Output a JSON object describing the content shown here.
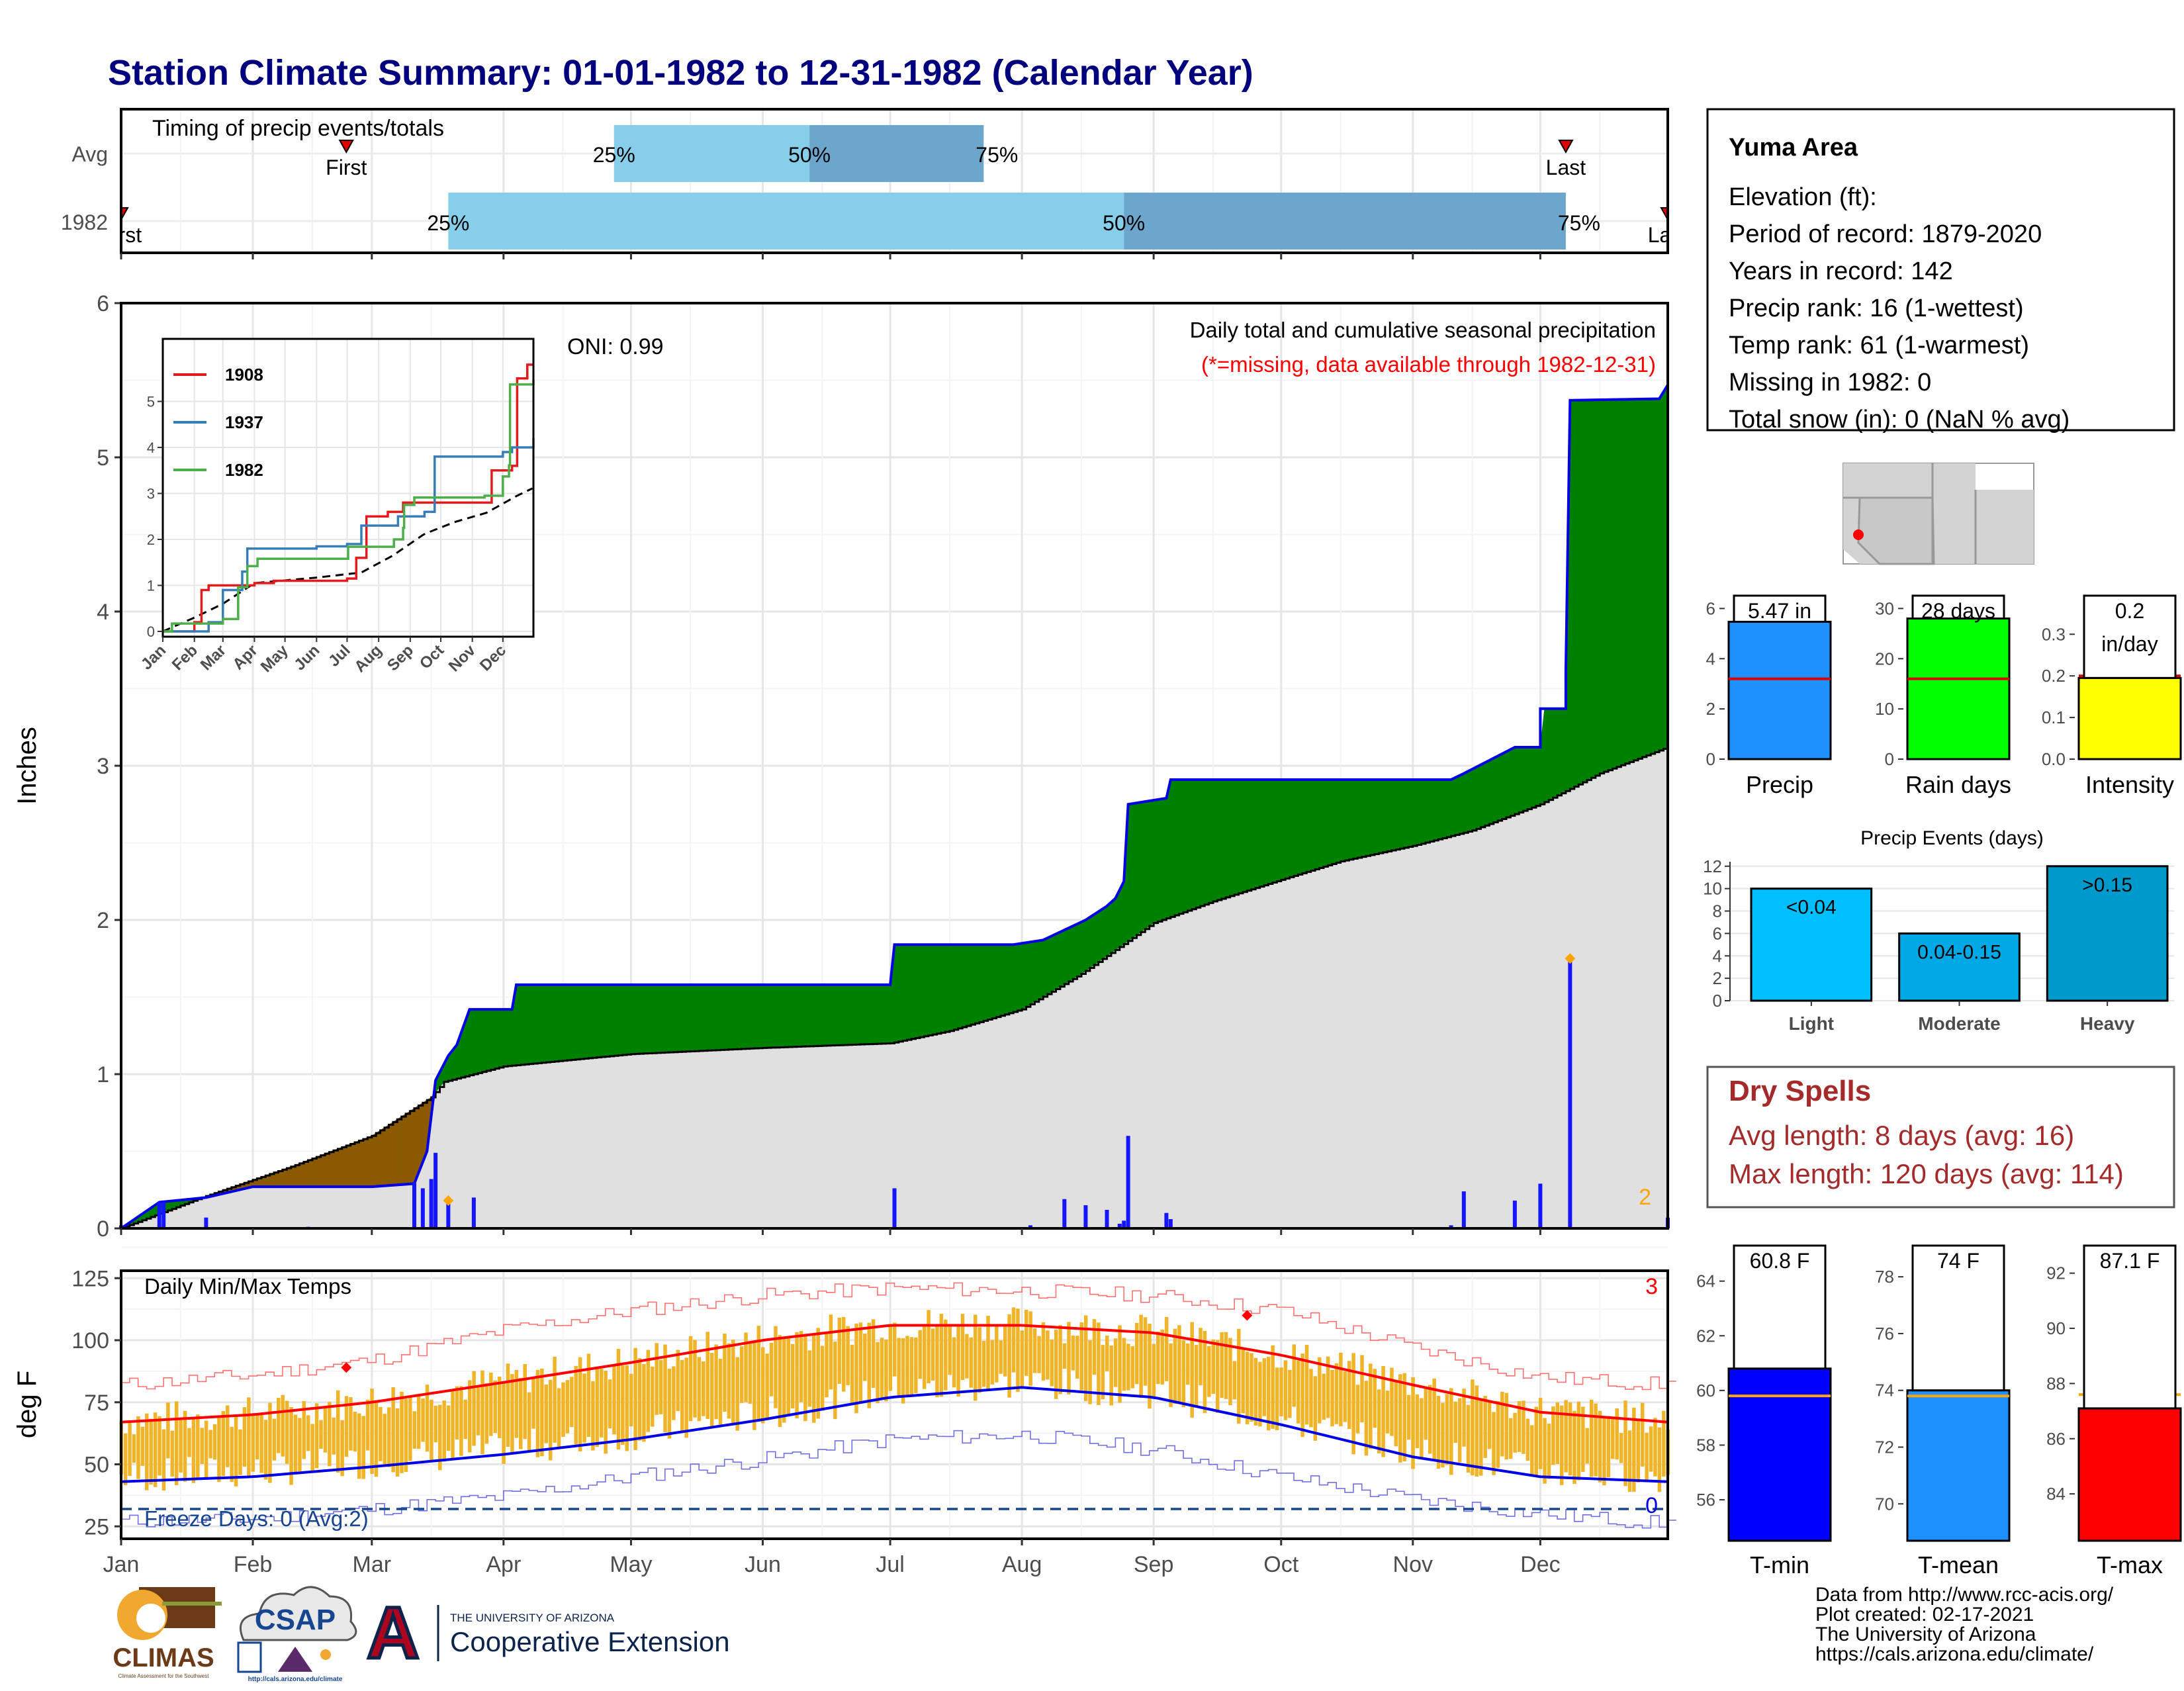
{
  "page": {
    "title": "Station Climate Summary: 01-01-1982 to 12-31-1982 (Calendar Year)",
    "months": [
      "Jan",
      "Feb",
      "Mar",
      "Apr",
      "May",
      "Jun",
      "Jul",
      "Aug",
      "Sep",
      "Oct",
      "Nov",
      "Dec"
    ],
    "footer_lines": [
      "Data from http://www.rcc-acis.org/",
      "Plot created: 02-17-2021",
      "The University of Arizona",
      "https://cals.arizona.edu/climate/"
    ],
    "logos": {
      "climas": "CLIMAS",
      "climas_tagline": "Climate Assessment for the Southwest",
      "csap": "CSAP",
      "csap_url": "http://cals.arizona.edu/climate",
      "ua_letter": "A",
      "ua_line1": "THE UNIVERSITY OF ARIZONA",
      "ua_line2": "Cooperative Extension"
    },
    "colors": {
      "title": "#00007f",
      "dark_red": "#a52a2a"
    }
  },
  "chart_data": [
    {
      "id": "timing",
      "type": "bar",
      "title": "Timing of precip events/totals",
      "rows": [
        {
          "label": "Avg",
          "first": "Feb 23",
          "p25": "Apr 27",
          "p50": "Jun 12",
          "p75": "Jul 23",
          "last": "Dec 7",
          "first_label": "First",
          "last_label": "Last"
        },
        {
          "label": "1982",
          "first": "Jan 1",
          "p25": "Mar 19",
          "p50": "Aug 25",
          "p75": "Dec 7",
          "last": "Dec 31",
          "first_label": "First",
          "last_label": "Last"
        }
      ],
      "pct_labels": [
        "25%",
        "50%",
        "75%"
      ],
      "colors": {
        "q1": "#87ceeb",
        "q2": "#6ca6cd",
        "marker": "#e00000"
      }
    },
    {
      "id": "precip",
      "type": "area",
      "ylabel": "Inches",
      "ylim": [
        0,
        6
      ],
      "yticks": [
        0,
        1,
        2,
        3,
        4,
        5,
        6
      ],
      "note1": "Daily total and cumulative seasonal precipitation",
      "note2": "(*=missing, data available through 1982-12-31)",
      "oni": "ONI: 0.99",
      "corner_count": "2",
      "cumulative_1982": [
        [
          "Jan 1",
          0
        ],
        [
          "Jan 10",
          0.17
        ],
        [
          "Jan 21",
          0.2
        ],
        [
          "Feb 1",
          0.27
        ],
        [
          "Mar 1",
          0.27
        ],
        [
          "Mar 11",
          0.29
        ],
        [
          "Mar 14",
          0.5
        ],
        [
          "Mar 16",
          0.96
        ],
        [
          "Mar 19",
          1.12
        ],
        [
          "Mar 21",
          1.19
        ],
        [
          "Mar 24",
          1.42
        ],
        [
          "Apr 3",
          1.42
        ],
        [
          "Apr 4",
          1.58
        ],
        [
          "Jul 1",
          1.58
        ],
        [
          "Jul 2",
          1.84
        ],
        [
          "Jul 30",
          1.84
        ],
        [
          "Aug 6",
          1.87
        ],
        [
          "Aug 16",
          2.0
        ],
        [
          "Aug 21",
          2.09
        ],
        [
          "Aug 23",
          2.14
        ],
        [
          "Aug 25",
          2.25
        ],
        [
          "Aug 26",
          2.75
        ],
        [
          "Sep 4",
          2.79
        ],
        [
          "Sep 5",
          2.91
        ],
        [
          "Nov 10",
          2.91
        ],
        [
          "Nov 13",
          2.95
        ],
        [
          "Nov 25",
          3.12
        ],
        [
          "Dec 1",
          3.12
        ],
        [
          "Dec 1",
          3.37
        ],
        [
          "Dec 7",
          3.37
        ],
        [
          "Dec 7",
          3.61
        ],
        [
          "Dec 8",
          5.37
        ],
        [
          "Dec 29",
          5.38
        ],
        [
          "Dec 31",
          5.47
        ]
      ],
      "average": [
        [
          "Jan 1",
          0
        ],
        [
          "Jan 20",
          0.2
        ],
        [
          "Feb 10",
          0.4
        ],
        [
          "Mar 1",
          0.6
        ],
        [
          "Mar 15",
          0.85
        ],
        [
          "Mar 18",
          0.95
        ],
        [
          "Apr 1",
          1.05
        ],
        [
          "May 1",
          1.13
        ],
        [
          "Jun 1",
          1.17
        ],
        [
          "Jul 1",
          1.2
        ],
        [
          "Jul 15",
          1.28
        ],
        [
          "Aug 1",
          1.42
        ],
        [
          "Aug 15",
          1.65
        ],
        [
          "Sep 1",
          1.98
        ],
        [
          "Sep 15",
          2.12
        ],
        [
          "Oct 1",
          2.26
        ],
        [
          "Oct 15",
          2.38
        ],
        [
          "Nov 1",
          2.48
        ],
        [
          "Nov 15",
          2.58
        ],
        [
          "Dec 1",
          2.75
        ],
        [
          "Dec 15",
          2.95
        ],
        [
          "Dec 31",
          3.12
        ]
      ],
      "daily": [
        [
          "Jan 1",
          0.02
        ],
        [
          "Jan 10",
          0.17
        ],
        [
          "Jan 11",
          0.17
        ],
        [
          "Jan 21",
          0.07
        ],
        [
          "Feb 14",
          0.01
        ],
        [
          "Mar 11",
          0.3
        ],
        [
          "Mar 13",
          0.26
        ],
        [
          "Mar 15",
          0.32
        ],
        [
          "Mar 16",
          0.49
        ],
        [
          "Mar 19",
          0.18
        ],
        [
          "Mar 25",
          0.2
        ],
        [
          "Jul 2",
          0.26
        ],
        [
          "Aug 3",
          0.02
        ],
        [
          "Aug 11",
          0.19
        ],
        [
          "Aug 16",
          0.15
        ],
        [
          "Aug 21",
          0.12
        ],
        [
          "Aug 24",
          0.03
        ],
        [
          "Aug 25",
          0.05
        ],
        [
          "Aug 26",
          0.6
        ],
        [
          "Sep 4",
          0.1
        ],
        [
          "Sep 5",
          0.06
        ],
        [
          "Nov 10",
          0.02
        ],
        [
          "Nov 13",
          0.24
        ],
        [
          "Nov 25",
          0.18
        ],
        [
          "Dec 1",
          0.29
        ],
        [
          "Dec 8",
          1.73
        ],
        [
          "Dec 31",
          0.07
        ]
      ],
      "star_markers": [
        [
          "Mar 19",
          0.18
        ],
        [
          "Dec 8",
          1.75
        ]
      ],
      "colors": {
        "above": "#008000",
        "below": "#8b5a00",
        "avg_fill": "#e0e0e0",
        "line": "#0000e6",
        "daily": "#1515ff"
      }
    },
    {
      "id": "inset",
      "type": "line",
      "yticks": [
        0,
        1,
        2,
        3,
        4,
        5
      ],
      "series": [
        {
          "name": "1908",
          "color": "#e41a1c",
          "values": [
            [
              "Jan 1",
              0
            ],
            [
              "Feb 1",
              0.2
            ],
            [
              "Feb 8",
              0.9
            ],
            [
              "Feb 15",
              1.0
            ],
            [
              "Apr 1",
              1.05
            ],
            [
              "Apr 20",
              1.1
            ],
            [
              "Jul 1",
              1.15
            ],
            [
              "Jul 10",
              1.6
            ],
            [
              "Jul 20",
              2.5
            ],
            [
              "Aug 10",
              2.6
            ],
            [
              "Aug 25",
              2.8
            ],
            [
              "Nov 1",
              2.8
            ],
            [
              "Nov 20",
              3.5
            ],
            [
              "Dec 10",
              3.6
            ],
            [
              "Dec 15",
              5.5
            ],
            [
              "Dec 25",
              5.8
            ],
            [
              "Dec 31",
              5.8
            ]
          ]
        },
        {
          "name": "1937",
          "color": "#377eb8",
          "values": [
            [
              "Jan 1",
              0
            ],
            [
              "Feb 15",
              0.2
            ],
            [
              "Mar 1",
              0.9
            ],
            [
              "Mar 20",
              1.3
            ],
            [
              "Mar 25",
              1.8
            ],
            [
              "May 1",
              1.8
            ],
            [
              "Jun 1",
              1.85
            ],
            [
              "Jul 1",
              1.9
            ],
            [
              "Jul 15",
              2.3
            ],
            [
              "Aug 20",
              2.5
            ],
            [
              "Sep 15",
              2.6
            ],
            [
              "Sep 25",
              3.8
            ],
            [
              "Nov 20",
              3.8
            ],
            [
              "Dec 1",
              3.9
            ],
            [
              "Dec 10",
              4.0
            ],
            [
              "Dec 31",
              4.2
            ]
          ]
        },
        {
          "name": "1982",
          "color": "#4daf4a",
          "values": [
            [
              "Jan 1",
              0
            ],
            [
              "Jan 10",
              0.17
            ],
            [
              "Mar 1",
              0.27
            ],
            [
              "Mar 16",
              0.96
            ],
            [
              "Mar 25",
              1.42
            ],
            [
              "Apr 4",
              1.58
            ],
            [
              "Jul 1",
              1.58
            ],
            [
              "Jul 2",
              1.84
            ],
            [
              "Aug 16",
              2.0
            ],
            [
              "Aug 25",
              2.25
            ],
            [
              "Aug 26",
              2.75
            ],
            [
              "Sep 5",
              2.91
            ],
            [
              "Nov 13",
              2.95
            ],
            [
              "Dec 1",
              3.37
            ],
            [
              "Dec 7",
              3.61
            ],
            [
              "Dec 8",
              5.37
            ],
            [
              "Dec 31",
              5.47
            ]
          ]
        }
      ],
      "average": [
        [
          "Jan 1",
          0
        ],
        [
          "Feb 1",
          0.3
        ],
        [
          "Mar 1",
          0.6
        ],
        [
          "Apr 1",
          1.05
        ],
        [
          "Jun 1",
          1.17
        ],
        [
          "Jul 15",
          1.28
        ],
        [
          "Aug 15",
          1.65
        ],
        [
          "Sep 15",
          2.12
        ],
        [
          "Oct 15",
          2.38
        ],
        [
          "Nov 15",
          2.58
        ],
        [
          "Dec 15",
          2.95
        ],
        [
          "Dec 31",
          3.12
        ]
      ]
    },
    {
      "id": "temps",
      "type": "line",
      "title": "Daily Min/Max Temps",
      "ylabel": "deg F",
      "ylim": [
        20,
        128
      ],
      "yticks": [
        25,
        50,
        75,
        100,
        125
      ],
      "freeze_text": "Freeze Days: 0 (Avg:2)",
      "freeze_line": 32,
      "corner_count_top": "3",
      "corner_count_bottom": "0",
      "normal_max": [
        [
          "Jan 1",
          67
        ],
        [
          "Feb 1",
          70
        ],
        [
          "Mar 1",
          75
        ],
        [
          "Apr 1",
          83
        ],
        [
          "May 1",
          91
        ],
        [
          "Jun 1",
          100
        ],
        [
          "Jul 1",
          106
        ],
        [
          "Aug 1",
          106
        ],
        [
          "Sep 1",
          103
        ],
        [
          "Oct 1",
          94
        ],
        [
          "Nov 1",
          82
        ],
        [
          "Dec 1",
          71
        ],
        [
          "Dec 31",
          67
        ]
      ],
      "normal_min": [
        [
          "Jan 1",
          43
        ],
        [
          "Feb 1",
          45
        ],
        [
          "Mar 1",
          49
        ],
        [
          "Apr 1",
          54
        ],
        [
          "May 1",
          60
        ],
        [
          "Jun 1",
          68
        ],
        [
          "Jul 1",
          77
        ],
        [
          "Aug 1",
          81
        ],
        [
          "Sep 1",
          77
        ],
        [
          "Oct 1",
          66
        ],
        [
          "Nov 1",
          53
        ],
        [
          "Dec 1",
          45
        ],
        [
          "Dec 31",
          43
        ]
      ],
      "record_max": [
        [
          "Jan 1",
          82
        ],
        [
          "Feb 1",
          86
        ],
        [
          "Mar 1",
          92
        ],
        [
          "Apr 1",
          104
        ],
        [
          "May 1",
          112
        ],
        [
          "Jun 1",
          118
        ],
        [
          "Jul 1",
          121
        ],
        [
          "Aug 1",
          120
        ],
        [
          "Sep 1",
          118
        ],
        [
          "Oct 1",
          112
        ],
        [
          "Nov 1",
          97
        ],
        [
          "Dec 1",
          85
        ],
        [
          "Dec 31",
          82
        ]
      ],
      "record_min": [
        [
          "Jan 1",
          27
        ],
        [
          "Feb 1",
          28
        ],
        [
          "Mar 1",
          32
        ],
        [
          "Apr 1",
          37
        ],
        [
          "May 1",
          45
        ],
        [
          "Jun 1",
          52
        ],
        [
          "Jul 1",
          60
        ],
        [
          "Aug 1",
          62
        ],
        [
          "Sep 1",
          56
        ],
        [
          "Oct 1",
          45
        ],
        [
          "Nov 1",
          36
        ],
        [
          "Dec 1",
          30
        ],
        [
          "Dec 31",
          26
        ]
      ],
      "record_markers": [
        [
          "Feb 23",
          89
        ],
        [
          "Sep 23",
          110
        ]
      ],
      "colors": {
        "bars": "#f0b428",
        "max": "#ff0000",
        "min": "#0000e6",
        "record_max": "#ff7070",
        "record_min": "#7070e0",
        "freeze": "#17458f"
      }
    },
    {
      "id": "precip_summary",
      "type": "bar",
      "panels": [
        {
          "label": "Precip",
          "value": 5.47,
          "value_text": "5.47 in",
          "avg": 3.2,
          "ylim": [
            0,
            6.3
          ],
          "yticks": [
            0,
            2,
            4,
            6
          ],
          "color": "#1e90ff"
        },
        {
          "label": "Rain days",
          "value": 28,
          "value_text": "28 days",
          "avg": 16,
          "ylim": [
            0,
            31.5
          ],
          "yticks": [
            0,
            10,
            20,
            30
          ],
          "color": "#00ff00"
        },
        {
          "label": "Intensity",
          "value": 0.195,
          "value_text": "0.2",
          "value_text2": "in/day",
          "avg": 0.2,
          "ylim": [
            0,
            0.38
          ],
          "yticks": [
            0.0,
            0.1,
            0.2,
            0.3
          ],
          "color": "#ffff00"
        }
      ],
      "avg_color": "#dd0000"
    },
    {
      "id": "events",
      "type": "bar",
      "title": "Precip Events (days)",
      "categories": [
        "Light",
        "Moderate",
        "Heavy"
      ],
      "bar_labels": [
        "<0.04",
        "0.04-0.15",
        ">0.15"
      ],
      "values": [
        10,
        6,
        12
      ],
      "ylim": [
        0,
        12.4
      ],
      "yticks": [
        0,
        2,
        4,
        6,
        8,
        10,
        12
      ],
      "colors": [
        "#00bfff",
        "#00a8e6",
        "#0099cc"
      ]
    },
    {
      "id": "temp_summary",
      "type": "bar",
      "panels": [
        {
          "label": "T-min",
          "value": 60.8,
          "value_text": "60.8 F",
          "avg": 59.8,
          "ylim": [
            54.5,
            65.3
          ],
          "yticks": [
            56,
            58,
            60,
            62,
            64
          ],
          "color": "#0000ff"
        },
        {
          "label": "T-mean",
          "value": 74,
          "value_text": "74 F",
          "avg": 73.8,
          "ylim": [
            68.7,
            79.1
          ],
          "yticks": [
            70,
            72,
            74,
            76,
            78
          ],
          "color": "#1e90ff"
        },
        {
          "label": "T-max",
          "value": 87.1,
          "value_text": "87.1 F",
          "avg": 87.6,
          "ylim": [
            82.3,
            93.0
          ],
          "yticks": [
            84,
            86,
            88,
            90,
            92
          ],
          "color": "#ff0000"
        }
      ],
      "avg_color": "#ffa500"
    }
  ],
  "station": {
    "name": "Yuma Area",
    "lines": [
      "Elevation (ft):",
      "Period of record: 1879-2020",
      "Years in record: 142",
      "Precip rank: 16 (1-wettest)",
      "Temp rank: 61 (1-warmest)",
      "Missing in 1982: 0",
      "Total snow (in): 0 (NaN % avg)"
    ]
  },
  "dry_spells": {
    "title": "Dry Spells",
    "lines": [
      "Avg length: 8 days (avg: 16)",
      "Max length: 120 days (avg: 114)"
    ]
  }
}
